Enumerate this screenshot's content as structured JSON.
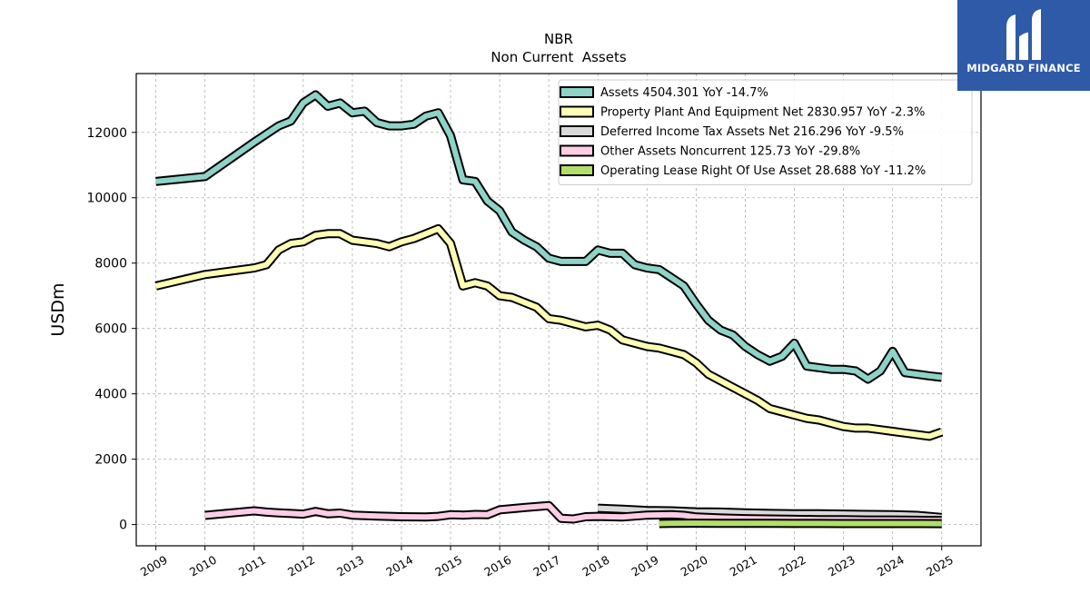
{
  "brand": {
    "name": "MIDGARD FINANCE",
    "bg": "#2f5aa8"
  },
  "chart_data": {
    "type": "line",
    "title": "NBR",
    "subtitle": "Non Current  Assets",
    "xlabel": "",
    "ylabel": "USDm",
    "xlim": [
      2008.6,
      2025.8
    ],
    "ylim": [
      -650,
      13800
    ],
    "x_ticks": [
      "2009",
      "2010",
      "2011",
      "2012",
      "2013",
      "2014",
      "2015",
      "2016",
      "2017",
      "2018",
      "2019",
      "2020",
      "2021",
      "2022",
      "2023",
      "2024",
      "2025"
    ],
    "y_ticks": [
      0,
      2000,
      4000,
      6000,
      8000,
      10000,
      12000
    ],
    "grid": true,
    "legend_position": "top-right",
    "series": [
      {
        "name": "Assets  4504.301 YoY -14.7%",
        "color": "#8dd3c7",
        "x": [
          2009.0,
          2010.0,
          2011.0,
          2011.5,
          2011.75,
          2012.0,
          2012.25,
          2012.5,
          2012.75,
          2013.0,
          2013.25,
          2013.5,
          2013.75,
          2014.0,
          2014.25,
          2014.5,
          2014.75,
          2015.0,
          2015.25,
          2015.5,
          2015.75,
          2016.0,
          2016.25,
          2016.5,
          2016.75,
          2017.0,
          2017.25,
          2017.5,
          2017.75,
          2018.0,
          2018.25,
          2018.5,
          2018.75,
          2019.0,
          2019.25,
          2019.5,
          2019.75,
          2020.0,
          2020.25,
          2020.5,
          2020.75,
          2021.0,
          2021.25,
          2021.5,
          2021.75,
          2022.0,
          2022.25,
          2022.5,
          2022.75,
          2023.0,
          2023.25,
          2023.5,
          2023.75,
          2024.0,
          2024.25,
          2024.5,
          2024.75,
          2025.0
        ],
        "values": [
          10500,
          10650,
          11700,
          12200,
          12350,
          12900,
          13150,
          12800,
          12900,
          12600,
          12650,
          12300,
          12200,
          12200,
          12250,
          12500,
          12600,
          11900,
          10550,
          10500,
          9900,
          9600,
          8950,
          8700,
          8500,
          8150,
          8050,
          8050,
          8050,
          8400,
          8300,
          8300,
          7950,
          7850,
          7800,
          7550,
          7300,
          6750,
          6250,
          5950,
          5800,
          5450,
          5200,
          5000,
          5150,
          5550,
          4850,
          4800,
          4750,
          4750,
          4700,
          4450,
          4700,
          5300,
          4650,
          4600,
          4550,
          4504
        ]
      },
      {
        "name": "Property Plant And Equipment Net  2830.957 YoY -2.3%",
        "color": "#ffffb3",
        "x": [
          2009.0,
          2010.0,
          2011.0,
          2011.25,
          2011.5,
          2011.75,
          2012.0,
          2012.25,
          2012.5,
          2012.75,
          2013.0,
          2013.25,
          2013.5,
          2013.75,
          2014.0,
          2014.25,
          2014.5,
          2014.75,
          2015.0,
          2015.25,
          2015.5,
          2015.75,
          2016.0,
          2016.25,
          2016.5,
          2016.75,
          2017.0,
          2017.25,
          2017.5,
          2017.75,
          2018.0,
          2018.25,
          2018.5,
          2018.75,
          2019.0,
          2019.25,
          2019.5,
          2019.75,
          2020.0,
          2020.25,
          2020.5,
          2020.75,
          2021.0,
          2021.25,
          2021.5,
          2021.75,
          2022.0,
          2022.25,
          2022.5,
          2022.75,
          2023.0,
          2023.25,
          2023.5,
          2023.75,
          2024.0,
          2024.25,
          2024.5,
          2024.75,
          2025.0
        ],
        "values": [
          7300,
          7650,
          7850,
          7950,
          8400,
          8600,
          8650,
          8850,
          8900,
          8900,
          8700,
          8650,
          8600,
          8500,
          8650,
          8750,
          8900,
          9050,
          8600,
          7300,
          7400,
          7300,
          7000,
          6950,
          6800,
          6650,
          6300,
          6250,
          6150,
          6050,
          6100,
          5950,
          5650,
          5550,
          5450,
          5400,
          5300,
          5200,
          4950,
          4600,
          4400,
          4200,
          4000,
          3800,
          3550,
          3450,
          3350,
          3250,
          3200,
          3100,
          3000,
          2950,
          2950,
          2900,
          2850,
          2800,
          2750,
          2700,
          2831
        ]
      },
      {
        "name": "Deferred Income Tax Assets Net  216.296 YoY -9.5%",
        "color": "#d9d9d9",
        "x": [
          2018.0,
          2018.5,
          2019.0,
          2019.5,
          2020.0,
          2020.5,
          2021.0,
          2021.5,
          2022.0,
          2022.5,
          2023.0,
          2023.5,
          2024.0,
          2024.5,
          2025.0
        ],
        "values": [
          500,
          470,
          430,
          420,
          390,
          380,
          360,
          340,
          330,
          330,
          320,
          310,
          300,
          280,
          216
        ]
      },
      {
        "name": "Other Assets Noncurrent  125.73 YoY -29.8%",
        "color": "#fccde5",
        "x": [
          2010.0,
          2010.5,
          2011.0,
          2011.25,
          2011.5,
          2011.75,
          2012.0,
          2012.25,
          2012.5,
          2012.75,
          2013.0,
          2013.5,
          2014.0,
          2014.5,
          2014.75,
          2015.0,
          2015.25,
          2015.5,
          2015.75,
          2016.0,
          2016.5,
          2017.0,
          2017.25,
          2017.5,
          2017.75,
          2018.0,
          2018.5,
          2019.0,
          2019.5,
          2019.75,
          2020.0,
          2020.5,
          2021.0,
          2021.5,
          2022.0,
          2022.5,
          2023.0,
          2023.5,
          2024.0,
          2024.5,
          2025.0
        ],
        "values": [
          280,
          350,
          420,
          380,
          360,
          340,
          320,
          400,
          330,
          350,
          290,
          260,
          240,
          230,
          250,
          300,
          290,
          310,
          300,
          450,
          520,
          580,
          190,
          170,
          240,
          250,
          230,
          290,
          300,
          280,
          230,
          200,
          180,
          170,
          160,
          150,
          150,
          140,
          140,
          130,
          126
        ]
      },
      {
        "name": "Operating Lease Right Of Use Asset  28.688 YoY -11.2%",
        "color": "#b3de69",
        "x": [
          2019.25,
          2019.5,
          2020.0,
          2020.5,
          2021.0,
          2021.5,
          2022.0,
          2022.5,
          2023.0,
          2023.5,
          2024.0,
          2024.5,
          2025.0
        ],
        "values": [
          30,
          40,
          42,
          40,
          38,
          36,
          34,
          33,
          32,
          32,
          31,
          30,
          29
        ]
      }
    ]
  }
}
